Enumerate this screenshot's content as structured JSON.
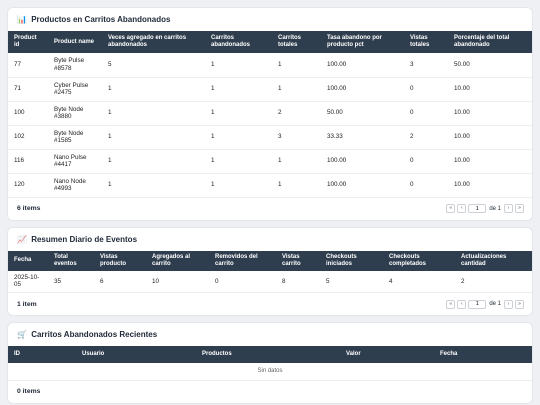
{
  "abandoned_products": {
    "icon": "📊",
    "title": "Productos en Carritos Abandonados",
    "headers": [
      "Product id",
      "Product name",
      "Veces agregado en carritos abandonados",
      "Carritos abandonados",
      "Carritos totales",
      "Tasa abandono por producto pct",
      "Vistas totales",
      "Porcentaje del total abandonado"
    ],
    "rows": [
      [
        "77",
        "Byte Pulse #8578",
        "5",
        "1",
        "1",
        "100.00",
        "3",
        "50.00"
      ],
      [
        "71",
        "Cyber Pulse #2475",
        "1",
        "1",
        "1",
        "100.00",
        "0",
        "10.00"
      ],
      [
        "100",
        "Byte Node #3880",
        "1",
        "1",
        "2",
        "50.00",
        "0",
        "10.00"
      ],
      [
        "102",
        "Byte Node #1585",
        "1",
        "1",
        "3",
        "33.33",
        "2",
        "10.00"
      ],
      [
        "116",
        "Nano Pulse #4417",
        "1",
        "1",
        "1",
        "100.00",
        "0",
        "10.00"
      ],
      [
        "120",
        "Nano Node #4993",
        "1",
        "1",
        "1",
        "100.00",
        "0",
        "10.00"
      ]
    ],
    "count_label": "6 items",
    "pager": {
      "first": "«",
      "prev": "‹",
      "page": "1",
      "of": "de 1",
      "next": "›",
      "last": "»"
    }
  },
  "daily_summary": {
    "icon": "📈",
    "title": "Resumen Diario de Eventos",
    "headers": [
      "Fecha",
      "Total eventos",
      "Vistas producto",
      "Agregados al carrito",
      "Removidos del carrito",
      "Vistas carrito",
      "Checkouts iniciados",
      "Checkouts completados",
      "Actualizaciones cantidad"
    ],
    "rows": [
      [
        "2025-10-05",
        "35",
        "6",
        "10",
        "0",
        "8",
        "5",
        "4",
        "2"
      ]
    ],
    "count_label": "1 item",
    "pager": {
      "first": "«",
      "prev": "‹",
      "page": "1",
      "of": "de 1",
      "next": "›",
      "last": "»"
    }
  },
  "recent_carts": {
    "icon": "🛒",
    "title": "Carritos Abandonados Recientes",
    "headers": [
      "ID",
      "Usuario",
      "Productos",
      "Valor",
      "Fecha"
    ],
    "empty_text": "Sin datos",
    "count_label": "0 items"
  }
}
